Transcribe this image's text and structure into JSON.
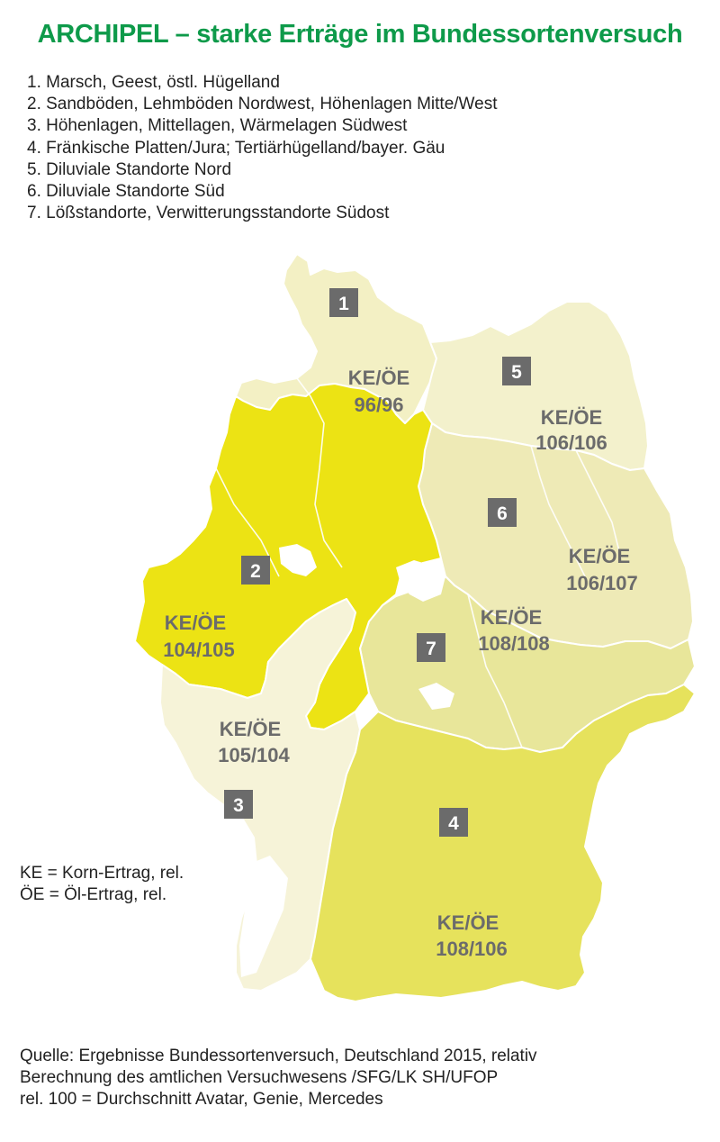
{
  "title": "ARCHIPEL – starke Erträge im Bundessortenversuch",
  "legend": [
    "1. Marsch, Geest, östl. Hügelland",
    "2. Sandböden, Lehmböden Nordwest, Höhenlagen Mitte/West",
    "3. Höhenlagen, Mittellagen, Wärmelagen Südwest",
    "4. Fränkische Platten/Jura; Tertiärhügelland/bayer. Gäu",
    "5. Diluviale Standorte Nord",
    "6. Diluviale Standorte Süd",
    "7. Lößstandorte, Verwitterungsstandorte Südost"
  ],
  "regions": [
    {
      "number": "1",
      "label": "KE/ÖE",
      "value": "96/96",
      "korn_ertrag": 96,
      "oel_ertrag": 96,
      "color": "#f3f0c4"
    },
    {
      "number": "2",
      "label": "KE/ÖE",
      "value": "104/105",
      "korn_ertrag": 104,
      "oel_ertrag": 105,
      "color": "#ece314"
    },
    {
      "number": "3",
      "label": "KE/ÖE",
      "value": "105/104",
      "korn_ertrag": 105,
      "oel_ertrag": 104,
      "color": "#f6f3d8"
    },
    {
      "number": "4",
      "label": "KE/ÖE",
      "value": "108/106",
      "korn_ertrag": 108,
      "oel_ertrag": 106,
      "color": "#e6e25c"
    },
    {
      "number": "5",
      "label": "KE/ÖE",
      "value": "106/106",
      "korn_ertrag": 106,
      "oel_ertrag": 106,
      "color": "#f3f1cc"
    },
    {
      "number": "6",
      "label": "KE/ÖE",
      "value": "106/107",
      "korn_ertrag": 106,
      "oel_ertrag": 107,
      "color": "#eeeab6"
    },
    {
      "number": "7",
      "label": "KE/ÖE",
      "value": "108/108",
      "korn_ertrag": 108,
      "oel_ertrag": 108,
      "color": "#e8e69a"
    }
  ],
  "abbreviations": [
    "KE = Korn-Ertrag, rel.",
    "ÖE = Öl-Ertrag, rel."
  ],
  "source": [
    "Quelle: Ergebnisse Bundessortenversuch, Deutschland 2015, relativ",
    "Berechnung des amtlichen Versuchwesens /SFG/LK SH/UFOP",
    "rel. 100 = Durchschnitt Avatar, Genie, Mercedes"
  ],
  "colors": {
    "title": "#0e9a4a",
    "badge": "#6b6b6b",
    "label_text": "#6b6b6b",
    "border": "#ffffff"
  }
}
